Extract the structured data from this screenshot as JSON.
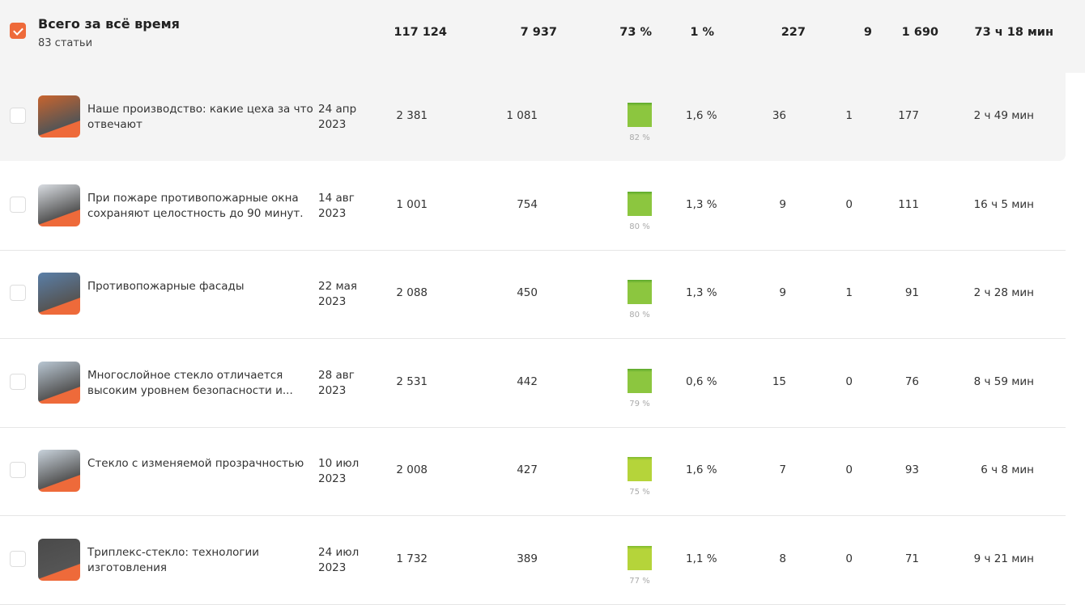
{
  "summary": {
    "title": "Всего за всё время",
    "subtitle": "83 статьи",
    "checked": true,
    "values": [
      "117 124",
      "7 937",
      "73 %",
      "1 %",
      "227",
      "9",
      "1 690",
      "73 ч 18 мин"
    ]
  },
  "rows": [
    {
      "title": "Наше производство: какие цеха за что отвечают",
      "date1": "24 апр",
      "date2": "2023",
      "views": "2 381",
      "reads": "1 081",
      "read_pct": 82,
      "read_pct_label": "82 %",
      "ctr": "1,6 %",
      "c1": "36",
      "c2": "1",
      "c3": "177",
      "time": "2 ч 49 мин",
      "thumb_color": "#c8642e"
    },
    {
      "title": "При пожаре противопожарные окна сохраняют целостность до 90 минут.",
      "date1": "14 авг",
      "date2": "2023",
      "views": "1 001",
      "reads": "754",
      "read_pct": 80,
      "read_pct_label": "80 %",
      "ctr": "1,3 %",
      "c1": "9",
      "c2": "0",
      "c3": "111",
      "time": "16 ч 5 мин",
      "thumb_color": "#d9dde2"
    },
    {
      "title": "Противопожарные фасады",
      "date1": "22 мая",
      "date2": "2023",
      "views": "2 088",
      "reads": "450",
      "read_pct": 80,
      "read_pct_label": "80 %",
      "ctr": "1,3 %",
      "c1": "9",
      "c2": "1",
      "c3": "91",
      "time": "2 ч 28 мин",
      "thumb_color": "#5a7fa8"
    },
    {
      "title": "Многослойное стекло отличается высоким уровнем безопасности и...",
      "date1": "28 авг",
      "date2": "2023",
      "views": "2 531",
      "reads": "442",
      "read_pct": 79,
      "read_pct_label": "79 %",
      "ctr": "0,6 %",
      "c1": "15",
      "c2": "0",
      "c3": "76",
      "time": "8 ч 59 мин",
      "thumb_color": "#b9c7d3"
    },
    {
      "title": "Стекло с изменяемой прозрачностью",
      "date1": "10 июл",
      "date2": "2023",
      "views": "2 008",
      "reads": "427",
      "read_pct": 75,
      "read_pct_label": "75 %",
      "ctr": "1,6 %",
      "c1": "7",
      "c2": "0",
      "c3": "93",
      "time": "6 ч 8 мин",
      "thumb_color": "#c9d3dc"
    },
    {
      "title": "Триплекс-стекло: технологии изготовления",
      "date1": "24 июл",
      "date2": "2023",
      "views": "1 732",
      "reads": "389",
      "read_pct": 77,
      "read_pct_label": "77 %",
      "ctr": "1,1 %",
      "c1": "8",
      "c2": "0",
      "c3": "71",
      "time": "9 ч 21 мин",
      "thumb_color": "#4a4a4a"
    }
  ],
  "colors": {
    "accent": "#ee6a3a",
    "bar_high": "#8cc63f",
    "bar_low": "#b5d43a"
  }
}
